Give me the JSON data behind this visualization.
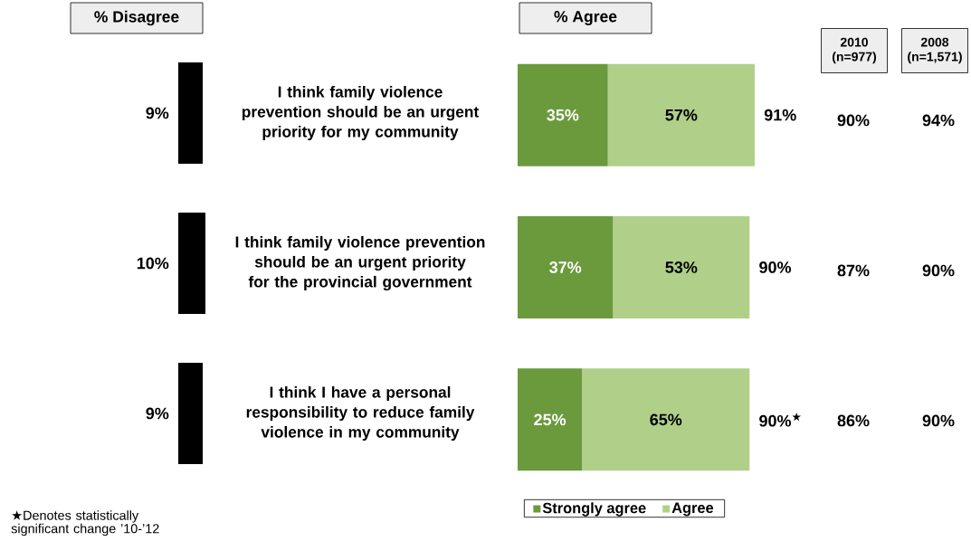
{
  "chart_data": [
    {
      "type": "bar",
      "orientation": "horizontal",
      "title": "% Disagree",
      "categories": [
        "I think family violence prevention should be an urgent priority for my community",
        "I think family violence prevention should be an urgent priority for the provincial government",
        "I think I have a personal responsibility to reduce family violence in my community"
      ],
      "values": [
        9,
        10,
        9
      ],
      "value_labels": [
        "9%",
        "10%",
        "9%"
      ],
      "color": "#000000",
      "tick_labels": "y"
    },
    {
      "type": "bar",
      "orientation": "horizontal",
      "stacked": true,
      "title": "% Agree",
      "categories": [
        null,
        null,
        null
      ],
      "series": [
        {
          "name": "Strongly agree",
          "color": "#6a9a3c",
          "values": [
            35,
            37,
            25
          ],
          "value_labels": [
            "35%",
            "37%",
            "25%"
          ]
        },
        {
          "name": "Agree",
          "color": "#b0d08a",
          "values": [
            57,
            53,
            65
          ],
          "value_labels": [
            "57%",
            "53%",
            "65%"
          ]
        }
      ],
      "totals": [
        "91%",
        "90%",
        "90%$^{★}$"
      ],
      "legend": "bottom",
      "annotations": [
        "★Denotes statistically significant change ’10-’12"
      ]
    },
    {
      "type": "other",
      "title": "2010 (n=977)",
      "annotations": [
        "90%",
        "87%",
        "86%"
      ]
    },
    {
      "type": "other",
      "title": "2008 (n=1,571)",
      "annotations": [
        "94%",
        "90%",
        "90%"
      ]
    }
  ]
}
